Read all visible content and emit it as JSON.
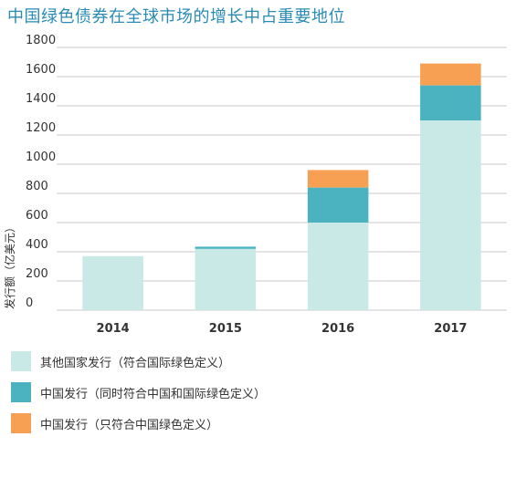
{
  "chart_data": {
    "type": "bar",
    "stacked": true,
    "title": "中国绿色债券在全球市场的增长中占重要地位",
    "ylabel": "发行额（亿美元）",
    "xlabel": "",
    "ylim": [
      0,
      1800
    ],
    "yticks": [
      "0",
      "200",
      "400",
      "600",
      "800",
      "1000",
      "1200",
      "1400",
      "1600",
      "1800"
    ],
    "yticks_values": [
      0,
      200,
      400,
      600,
      800,
      1000,
      1200,
      1400,
      1600,
      1800
    ],
    "categories": [
      "2014",
      "2015",
      "2016",
      "2017"
    ],
    "series": [
      {
        "name": "其他国家发行（符合国际绿色定义）",
        "color": "#c9e9e6",
        "values": [
          370,
          420,
          600,
          1300
        ]
      },
      {
        "name": "中国发行（同时符合中国和国际绿色定义）",
        "color": "#4bb3c0",
        "values": [
          0,
          15,
          240,
          240
        ]
      },
      {
        "name": "中国发行（只符合中国绿色定义）",
        "color": "#f7a054",
        "values": [
          0,
          0,
          120,
          150
        ]
      }
    ],
    "grid": true,
    "legend_position": "bottom"
  }
}
